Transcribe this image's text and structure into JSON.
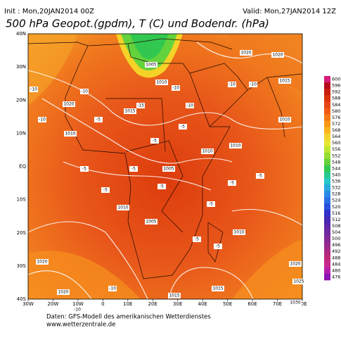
{
  "header": {
    "init": "Init : Mon,20JAN2014 00Z",
    "valid": "Valid: Mon,27JAN2014 12Z",
    "title": "500 hPa Geopot.(gpdm), T (C) und Bodendr. (hPa)"
  },
  "map": {
    "lon_labels": [
      "30W",
      "20W",
      "10W",
      "0",
      "10E",
      "20E",
      "30E",
      "40E",
      "50E",
      "60E",
      "70E",
      "80E"
    ],
    "lat_labels": [
      "40N",
      "30N",
      "20N",
      "10N",
      "EQ",
      "10S",
      "20S",
      "30S",
      "40S"
    ],
    "isobar_labels": [
      "1005",
      "1010",
      "1015",
      "1020",
      "1025",
      "1030"
    ],
    "temperature_labels": [
      "-5",
      "-10",
      "-15"
    ]
  },
  "colorbar": {
    "values": [
      600,
      596,
      592,
      588,
      584,
      580,
      576,
      572,
      568,
      564,
      560,
      556,
      552,
      548,
      544,
      540,
      536,
      532,
      528,
      524,
      520,
      516,
      512,
      508,
      504,
      500,
      496,
      492,
      488,
      484,
      480,
      476
    ],
    "colors": [
      "#d81b7a",
      "#b40a1e",
      "#c81e0a",
      "#dc320a",
      "#e64614",
      "#f05a14",
      "#f57814",
      "#fa9614",
      "#fab41e",
      "#f5d228",
      "#e6e632",
      "#bee632",
      "#96dc32",
      "#64d23c",
      "#32c850",
      "#28c88c",
      "#28c8c8",
      "#28aadc",
      "#288ce6",
      "#286ee6",
      "#2850dc",
      "#3232c8",
      "#4628b4",
      "#5a28aa",
      "#6e28a0",
      "#822896",
      "#96288c",
      "#aa2882",
      "#be2878",
      "#c8288c",
      "#b41eaa",
      "#8c14b4"
    ]
  },
  "footer": {
    "source": "Daten: GFS-Modell des amerikanischen Wetterdienstes",
    "url": "www.wetterzentrale.de"
  }
}
